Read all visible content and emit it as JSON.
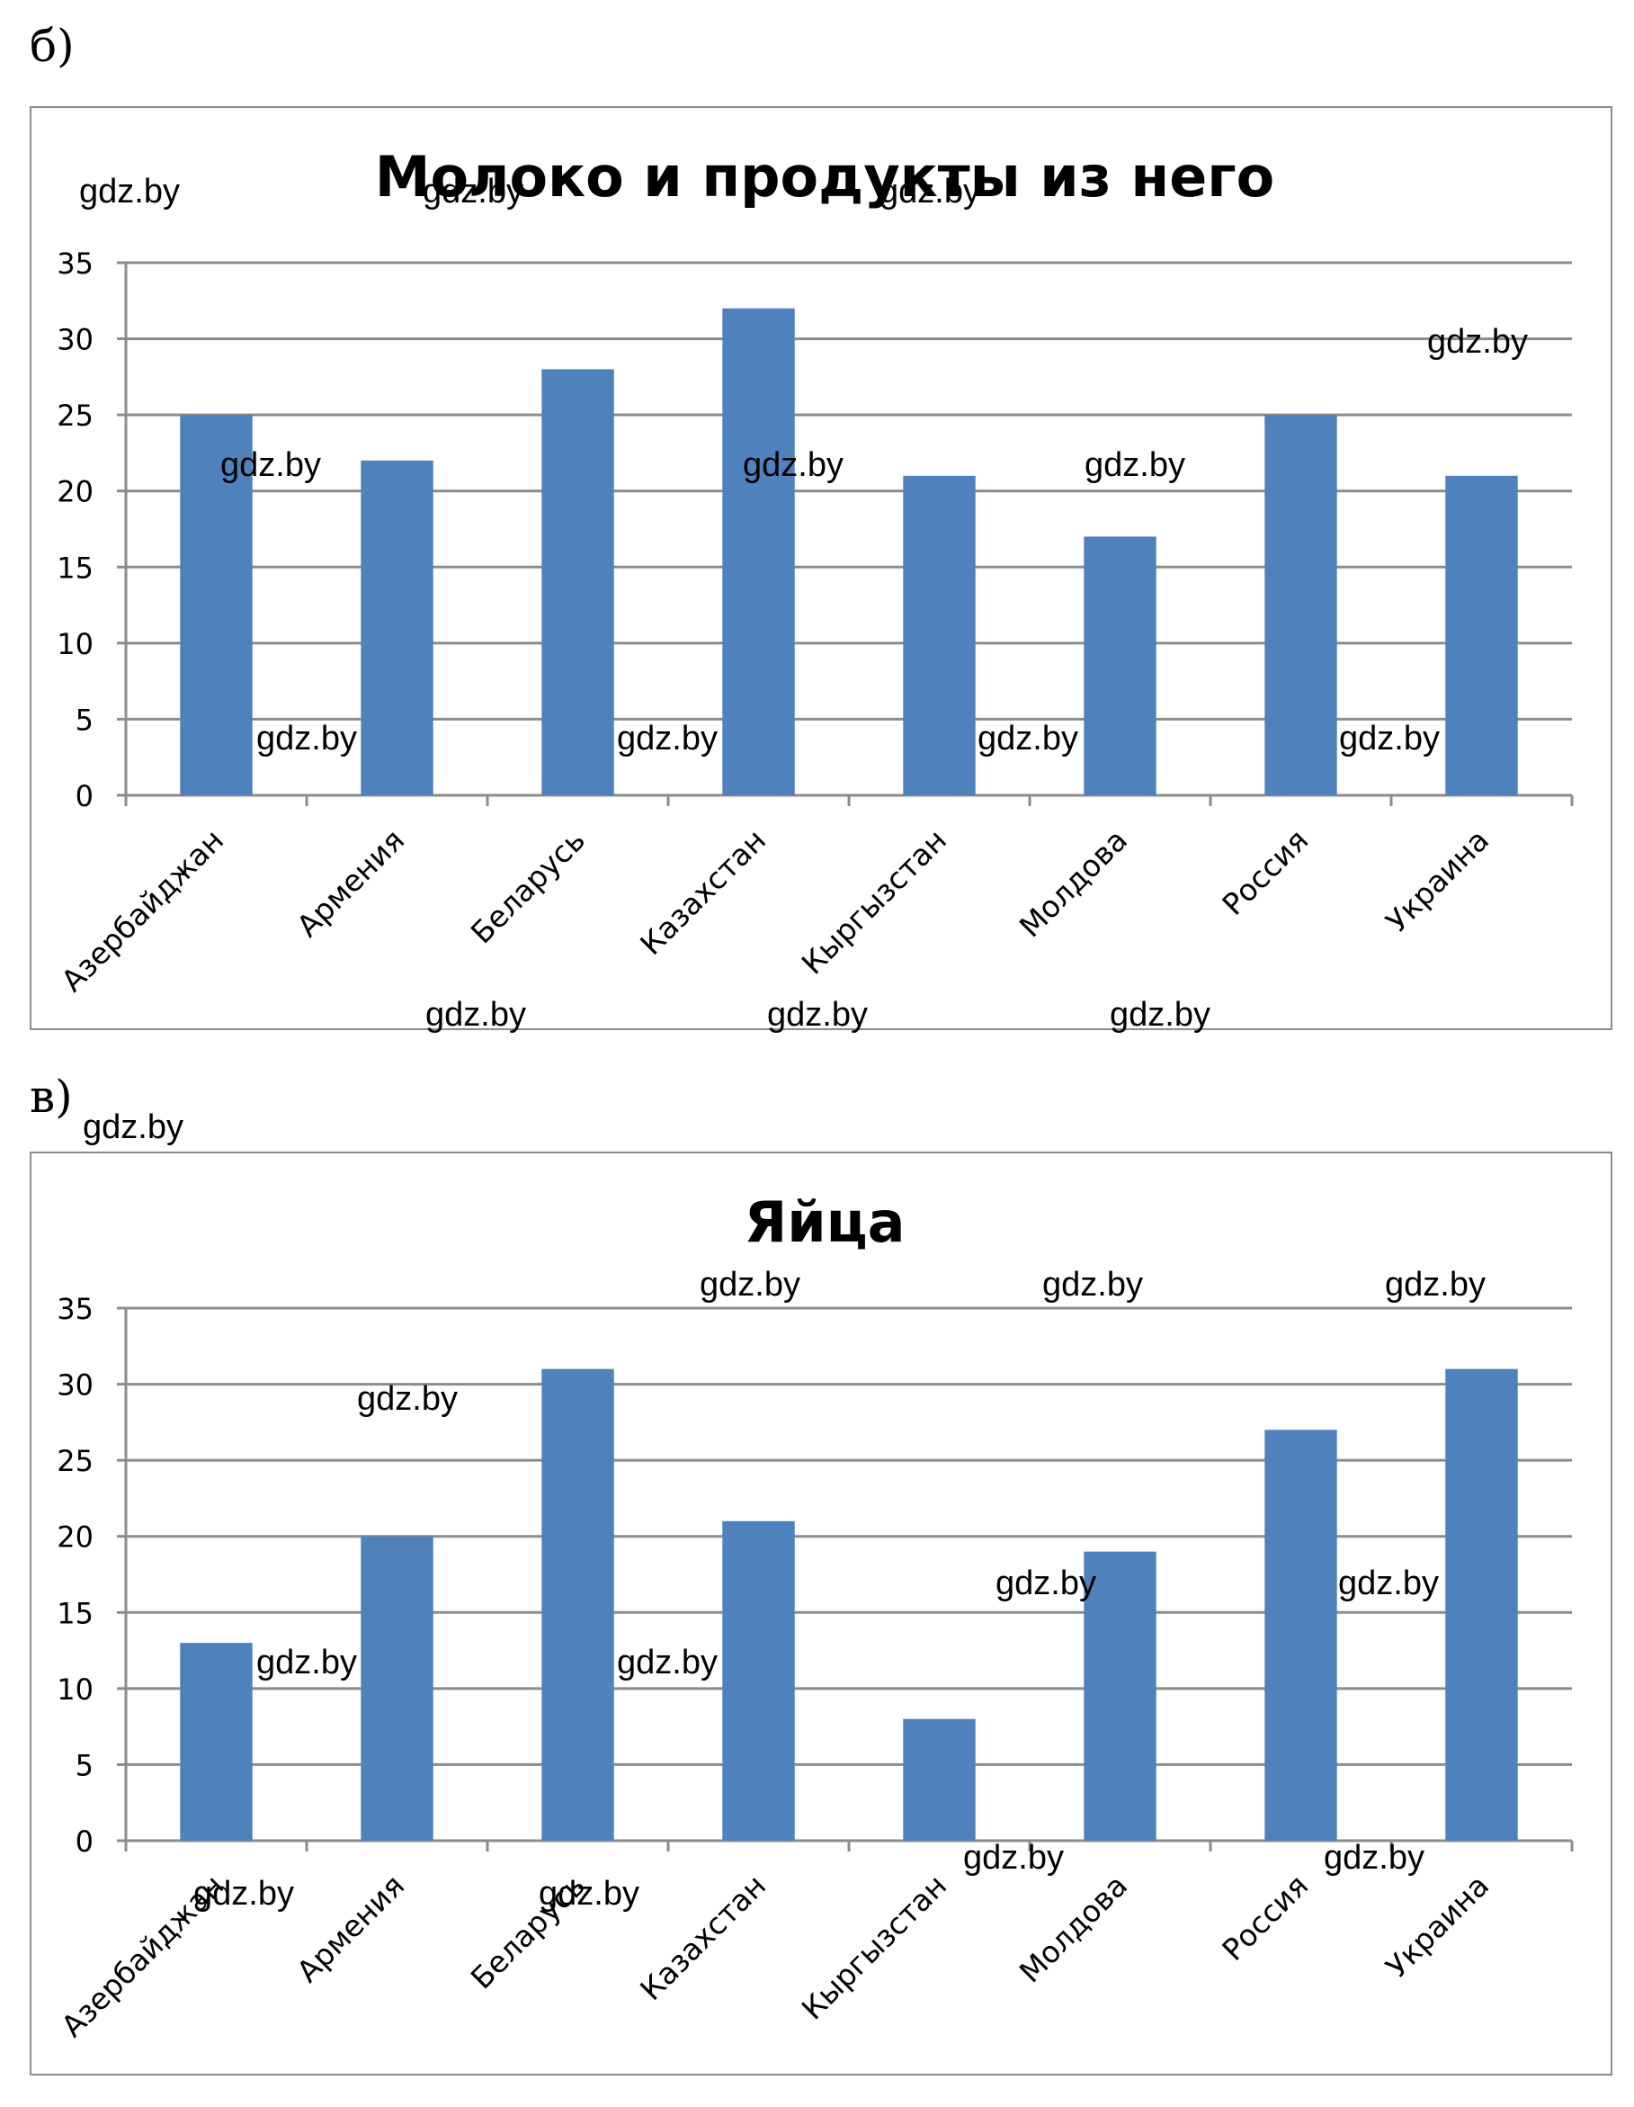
{
  "labels": {
    "b": "б)",
    "v": "в)"
  },
  "watermark_text": "gdz.by",
  "bar_color": "#4f81bd",
  "chart_data": [
    {
      "type": "bar",
      "title": "Молоко и продукты из него",
      "categories": [
        "Азербайджан",
        "Армения",
        "Беларусь",
        "Казахстан",
        "Кыргызстан",
        "Молдова",
        "Россия",
        "Украина"
      ],
      "values": [
        25,
        22,
        28,
        32,
        21,
        17,
        25,
        21
      ],
      "yticks": [
        "0",
        "5",
        "10",
        "15",
        "20",
        "25",
        "30",
        "35"
      ],
      "ylim": [
        0,
        35
      ],
      "grid": true,
      "xlabel": "",
      "ylabel": ""
    },
    {
      "type": "bar",
      "title": "Яйца",
      "categories": [
        "Азербайджан",
        "Армения",
        "Беларусь",
        "Казахстан",
        "Кыргызстан",
        "Молдова",
        "Россия",
        "Украина"
      ],
      "values": [
        13,
        20,
        31,
        21,
        8,
        19,
        27,
        31
      ],
      "yticks": [
        "0",
        "5",
        "10",
        "15",
        "20",
        "25",
        "30",
        "35"
      ],
      "ylim": [
        0,
        35
      ],
      "grid": true,
      "xlabel": "",
      "ylabel": ""
    }
  ]
}
